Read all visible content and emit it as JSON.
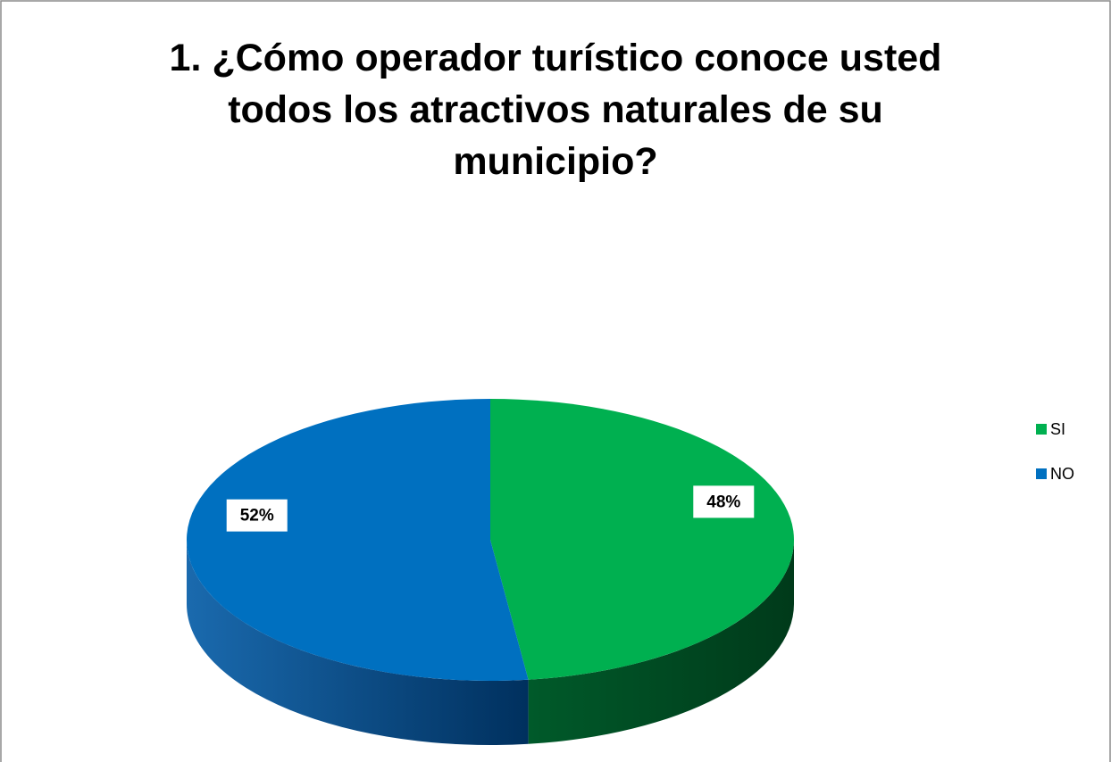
{
  "chart_data": {
    "type": "pie",
    "title": "1. ¿Cómo operador turístico conoce usted todos los atractivos naturales de su municipio?",
    "categories": [
      "SI",
      "NO"
    ],
    "values": [
      48,
      52
    ],
    "value_labels": [
      "48%",
      "52%"
    ],
    "colors": [
      "#00b050",
      "#0070c0"
    ],
    "legend": "right"
  }
}
